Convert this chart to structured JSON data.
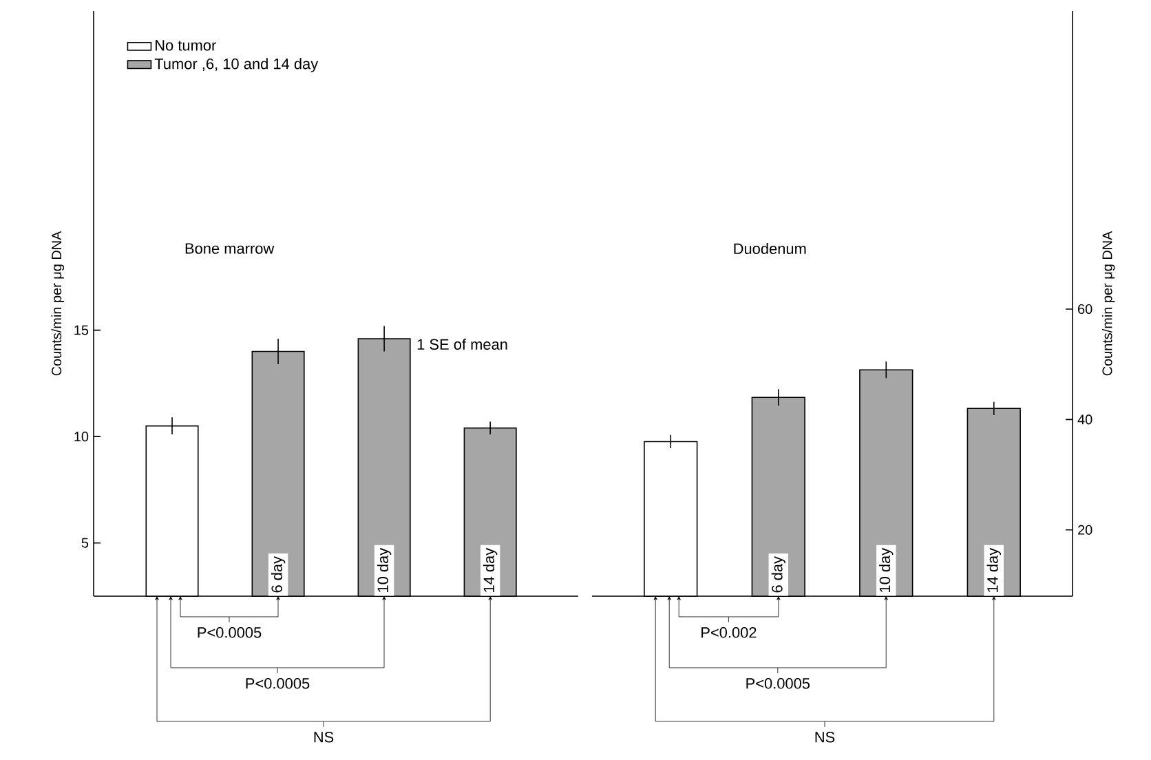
{
  "chart_data": [
    {
      "type": "bar",
      "title": "Bone marrow",
      "ylabel": "Counts/min per μg DNA",
      "categories": [
        null,
        "6 day",
        "10 day",
        "14 day"
      ],
      "series": [
        {
          "name": "No tumor",
          "color": "#ffffff",
          "values": [
            10.5,
            null,
            null,
            null
          ],
          "errors": [
            0.4,
            null,
            null,
            null
          ]
        },
        {
          "name": "Tumor ,6, 10 and 14 day",
          "color": "#a6a6a6",
          "values": [
            null,
            14.0,
            14.6,
            10.4
          ],
          "errors": [
            null,
            0.6,
            0.6,
            0.3
          ]
        }
      ],
      "ylim": [
        2.5,
        30
      ],
      "yticks": [
        5,
        10,
        15
      ],
      "legend": "top left",
      "annotations": [
        {
          "text": "1 SE of mean",
          "x": "10 day",
          "y": 14.6
        },
        "P<0.0005",
        "P<0.0005",
        "NS"
      ]
    },
    {
      "type": "bar",
      "title": "Duodenum",
      "ylabel": "Counts/min per μg DNA",
      "categories": [
        null,
        "6 day",
        "10 day",
        "14 day"
      ],
      "series": [
        {
          "color": "#ffffff",
          "values": [
            36,
            null,
            null,
            null
          ],
          "errors": [
            1.2,
            null,
            null,
            null
          ]
        },
        {
          "color": "#a6a6a6",
          "values": [
            null,
            44,
            49,
            42
          ],
          "errors": [
            null,
            1.5,
            1.5,
            1.2
          ]
        }
      ],
      "ylim": [
        8,
        114
      ],
      "yticks": [
        20,
        40,
        60
      ],
      "annotations": [
        "P<0.002",
        "P<0.0005",
        "NS"
      ]
    }
  ]
}
